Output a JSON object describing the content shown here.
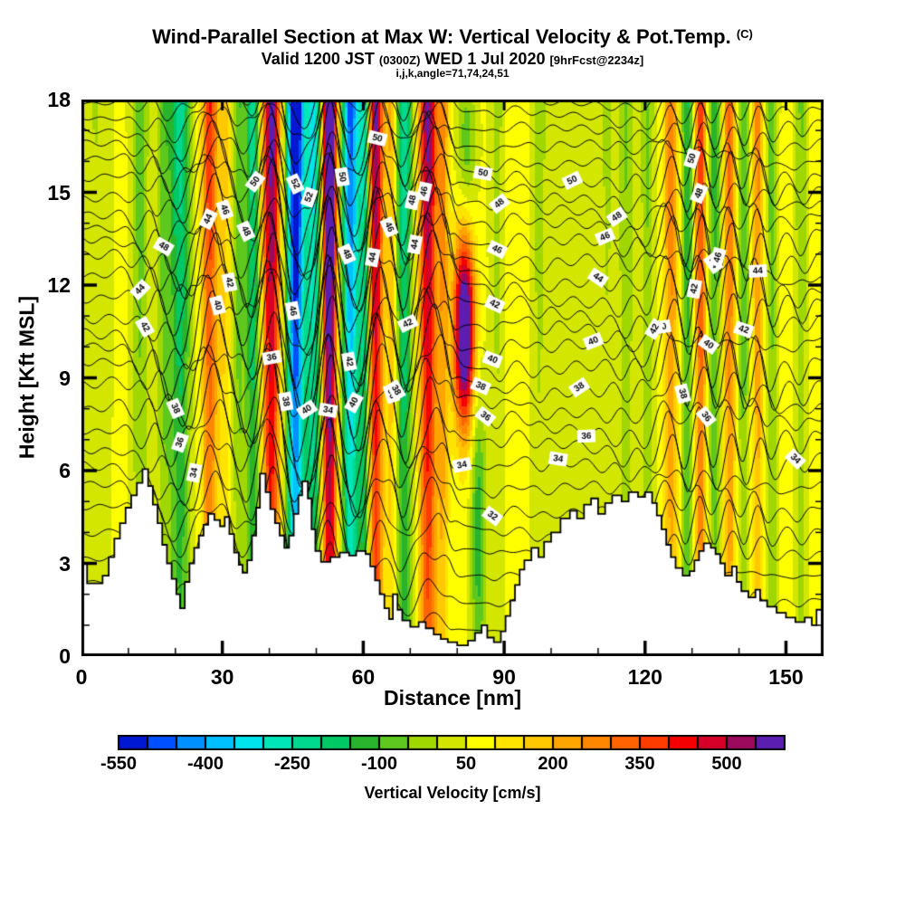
{
  "header": {
    "title_main": "Wind-Parallel Section at Max W: Vertical Velocity & Pot.Temp.",
    "title_suffix": "(C)",
    "subtitle_pre": "Valid 1200 JST ",
    "subtitle_small1": "(0300Z)",
    "subtitle_mid": " WED 1 Jul 2020 ",
    "subtitle_small2": "[9hrFcst@2234z]",
    "subtitle_line3": "i,j,k,angle=71,74,24,51"
  },
  "chart_data": {
    "type": "heatmap",
    "title": "Wind-Parallel Section at Max W: Vertical Velocity & Pot.Temp. (C)",
    "subtitle": "Valid 1200 JST (0300Z) WED 1 Jul 2020 [9hrFcst@2234z]",
    "annotation": "i,j,k,angle=71,74,24,51",
    "xlabel": "Distance [nm]",
    "ylabel": "Height [Kft MSL]",
    "x_range": [
      0,
      158
    ],
    "y_range": [
      0,
      18
    ],
    "x_ticks": [
      0,
      30,
      60,
      90,
      120,
      150
    ],
    "x_minor_step": 10,
    "y_ticks": [
      0,
      3,
      6,
      9,
      12,
      15,
      18
    ],
    "y_minor_step": 1,
    "grid": false,
    "colorbar": {
      "label": "Vertical Velocity [cm/s]",
      "tick_labels": [
        -550,
        -400,
        -250,
        -100,
        50,
        200,
        350,
        500
      ],
      "level_min": -550,
      "level_step": 50,
      "colors": [
        "#0018d2",
        "#0050ff",
        "#0090ff",
        "#00c0ff",
        "#00e4ee",
        "#00e6b8",
        "#00d890",
        "#00c864",
        "#28b42d",
        "#5ec81e",
        "#a0d700",
        "#d2e600",
        "#ffff00",
        "#ffe400",
        "#ffc800",
        "#ffa500",
        "#ff8700",
        "#ff6400",
        "#ff3c00",
        "#f50000",
        "#d40028",
        "#9c0a5e",
        "#5a1eb0"
      ]
    },
    "fill_field": {
      "comment": "vertical-velocity band structure, cm/s: c=center nm, w=half-width nm, a=amplitude; zc/zw optional height localization (Kft)",
      "base": 60,
      "m0": 0.55,
      "m1": 0.5,
      "bands": [
        {
          "c": 3,
          "w": 3,
          "a": -60
        },
        {
          "c": 12.5,
          "w": 1.8,
          "a": -140
        },
        {
          "c": 17.5,
          "w": 1.5,
          "a": -130
        },
        {
          "c": 21,
          "w": 2.2,
          "a": -280
        },
        {
          "c": 27.3,
          "w": 1.6,
          "a": 330
        },
        {
          "c": 30.5,
          "w": 1.5,
          "a": 110
        },
        {
          "c": 33.5,
          "w": 1.4,
          "a": -150
        },
        {
          "c": 36.5,
          "w": 1.5,
          "a": -290
        },
        {
          "c": 40.4,
          "w": 1.8,
          "a": 520
        },
        {
          "c": 45.6,
          "w": 1.9,
          "a": -680
        },
        {
          "c": 49.4,
          "w": 1.7,
          "a": -380
        },
        {
          "c": 52.8,
          "w": 1.5,
          "a": 700
        },
        {
          "c": 57.3,
          "w": 1.8,
          "a": -520
        },
        {
          "c": 60.3,
          "w": 1.3,
          "a": -330
        },
        {
          "c": 62.6,
          "w": 1.6,
          "a": 500
        },
        {
          "c": 66,
          "w": 1,
          "a": 160
        },
        {
          "c": 68.7,
          "w": 1.7,
          "a": -300
        },
        {
          "c": 73.8,
          "w": 1.8,
          "a": 500
        },
        {
          "c": 77,
          "w": 1.2,
          "a": 200
        },
        {
          "c": 81.5,
          "w": 2.2,
          "a": 420,
          "zc": 10.5,
          "zw": 3
        },
        {
          "c": 82,
          "w": 2,
          "a": -90,
          "zc": 16.5,
          "zw": 2.5
        },
        {
          "c": 84.5,
          "w": 1.6,
          "a": -120,
          "zc": 4,
          "zw": 5
        },
        {
          "c": 88.5,
          "w": 1.5,
          "a": -80
        },
        {
          "c": 93,
          "w": 2,
          "a": 30
        },
        {
          "c": 97.5,
          "w": 2,
          "a": -80
        },
        {
          "c": 103,
          "w": 2,
          "a": -50
        },
        {
          "c": 108,
          "w": 2,
          "a": -45
        },
        {
          "c": 112,
          "w": 1.8,
          "a": -70
        },
        {
          "c": 116,
          "w": 1.6,
          "a": -115
        },
        {
          "c": 120.5,
          "w": 1.4,
          "a": -120
        },
        {
          "c": 125.5,
          "w": 1.5,
          "a": 230
        },
        {
          "c": 129,
          "w": 1.3,
          "a": -210
        },
        {
          "c": 131.8,
          "w": 1.2,
          "a": 330
        },
        {
          "c": 134.8,
          "w": 1.3,
          "a": -190
        },
        {
          "c": 138,
          "w": 1.3,
          "a": 260
        },
        {
          "c": 141,
          "w": 1.2,
          "a": -160
        },
        {
          "c": 144,
          "w": 1.2,
          "a": 210
        },
        {
          "c": 147,
          "w": 1.3,
          "a": -140
        },
        {
          "c": 150.5,
          "w": 1.5,
          "a": 30
        },
        {
          "c": 153.2,
          "w": 1.3,
          "a": -115
        },
        {
          "c": 156.5,
          "w": 1.5,
          "a": 30
        }
      ]
    },
    "contours": {
      "variable": "Potential Temperature (C)",
      "level_min": 27,
      "level_max": 56,
      "level_step": 1,
      "theta_fit": {
        "t0": 26,
        "a1": 1.1,
        "a2": 0.028
      },
      "wave": {
        "amp": 1.9,
        "norm": 560,
        "zig_amp": 0.5,
        "zig_wavelength_nm": 6.3,
        "env_norm": 260,
        "slow_amp": 0.18
      },
      "labeled_levels": [
        32,
        34,
        36,
        38,
        40,
        42,
        44,
        46,
        48,
        50,
        52
      ],
      "labels": [
        {
          "v": 32,
          "x": 87.5
        },
        {
          "v": 34,
          "x": 24
        },
        {
          "v": 34,
          "x": 52.5
        },
        {
          "v": 34,
          "x": 81
        },
        {
          "v": 34,
          "x": 101.5
        },
        {
          "v": 34,
          "x": 152
        },
        {
          "v": 36,
          "x": 21
        },
        {
          "v": 36,
          "x": 40.5
        },
        {
          "v": 36,
          "x": 66
        },
        {
          "v": 36,
          "x": 86
        },
        {
          "v": 36,
          "x": 107.5
        },
        {
          "v": 36,
          "x": 133
        },
        {
          "v": 38,
          "x": 20
        },
        {
          "v": 38,
          "x": 43.5
        },
        {
          "v": 38,
          "x": 67
        },
        {
          "v": 38,
          "x": 85
        },
        {
          "v": 38,
          "x": 106
        },
        {
          "v": 38,
          "x": 128
        },
        {
          "v": 40,
          "x": 29
        },
        {
          "v": 40,
          "x": 48
        },
        {
          "v": 40,
          "x": 58
        },
        {
          "v": 40,
          "x": 87.5
        },
        {
          "v": 40,
          "x": 109
        },
        {
          "v": 40,
          "x": 123.5
        },
        {
          "v": 40,
          "x": 133.5
        },
        {
          "v": 42,
          "x": 13.5
        },
        {
          "v": 42,
          "x": 31.5
        },
        {
          "v": 42,
          "x": 57
        },
        {
          "v": 42,
          "x": 69.5
        },
        {
          "v": 42,
          "x": 88
        },
        {
          "v": 42,
          "x": 122
        },
        {
          "v": 42,
          "x": 130.5
        },
        {
          "v": 42,
          "x": 141
        },
        {
          "v": 44,
          "x": 12.5
        },
        {
          "v": 44,
          "x": 27
        },
        {
          "v": 44,
          "x": 62
        },
        {
          "v": 44,
          "x": 71
        },
        {
          "v": 44,
          "x": 110
        },
        {
          "v": 44,
          "x": 134.5
        },
        {
          "v": 44,
          "x": 144
        },
        {
          "v": 46,
          "x": 30.5
        },
        {
          "v": 46,
          "x": 45
        },
        {
          "v": 46,
          "x": 65.5
        },
        {
          "v": 46,
          "x": 73
        },
        {
          "v": 46,
          "x": 88.5
        },
        {
          "v": 46,
          "x": 111.5
        },
        {
          "v": 46,
          "x": 135.5
        },
        {
          "v": 48,
          "x": 17.5
        },
        {
          "v": 48,
          "x": 35
        },
        {
          "v": 48,
          "x": 56.5
        },
        {
          "v": 48,
          "x": 70.5
        },
        {
          "v": 48,
          "x": 89
        },
        {
          "v": 48,
          "x": 114
        },
        {
          "v": 48,
          "x": 131.5
        },
        {
          "v": 50,
          "x": 37
        },
        {
          "v": 50,
          "x": 55.5
        },
        {
          "v": 50,
          "x": 63
        },
        {
          "v": 50,
          "x": 85.5
        },
        {
          "v": 50,
          "x": 104.5
        },
        {
          "v": 50,
          "x": 130
        },
        {
          "v": 52,
          "x": 45.5
        },
        {
          "v": 52,
          "x": 48.5
        }
      ]
    },
    "terrain_profile": [
      [
        0,
        3.0
      ],
      [
        1.2,
        2.35
      ],
      [
        4.5,
        2.6
      ],
      [
        5.8,
        3.2
      ],
      [
        7,
        3.8
      ],
      [
        8.2,
        4.3
      ],
      [
        9.4,
        4.8
      ],
      [
        10.6,
        5.2
      ],
      [
        11.8,
        5.6
      ],
      [
        13,
        6.05
      ],
      [
        14.2,
        5.5
      ],
      [
        15.2,
        4.9
      ],
      [
        16.2,
        4.3
      ],
      [
        17.2,
        3.6
      ],
      [
        18.2,
        3.0
      ],
      [
        19.2,
        2.5
      ],
      [
        20.2,
        2.0
      ],
      [
        21,
        1.55
      ],
      [
        22,
        2.4
      ],
      [
        23,
        3.0
      ],
      [
        24,
        3.5
      ],
      [
        25,
        3.9
      ],
      [
        26,
        4.25
      ],
      [
        27,
        4.6
      ],
      [
        28.3,
        4.4
      ],
      [
        29.5,
        4.2
      ],
      [
        30.5,
        4.5
      ],
      [
        31.5,
        3.95
      ],
      [
        32.5,
        3.35
      ],
      [
        33.5,
        2.95
      ],
      [
        34.3,
        2.7
      ],
      [
        35.3,
        3.1
      ],
      [
        36.3,
        3.9
      ],
      [
        37.2,
        4.8
      ],
      [
        38,
        5.9
      ],
      [
        39.2,
        5.3
      ],
      [
        40.2,
        4.75
      ],
      [
        41.2,
        4.3
      ],
      [
        42.2,
        3.9
      ],
      [
        43.2,
        3.5
      ],
      [
        44.2,
        3.9
      ],
      [
        45.2,
        4.6
      ],
      [
        46.2,
        5.2
      ],
      [
        47,
        5.65
      ],
      [
        48.2,
        5.1
      ],
      [
        49,
        4.1
      ],
      [
        49.8,
        3.4
      ],
      [
        51,
        3.05
      ],
      [
        53,
        3.2
      ],
      [
        55,
        3.35
      ],
      [
        57,
        3.25
      ],
      [
        58.5,
        3.4
      ],
      [
        60.5,
        3.3
      ],
      [
        61.5,
        2.9
      ],
      [
        62.5,
        2.45
      ],
      [
        63.5,
        2.0
      ],
      [
        64.5,
        1.55
      ],
      [
        65.5,
        1.2
      ],
      [
        66.3,
        2.0
      ],
      [
        67.3,
        1.5
      ],
      [
        68.3,
        1.15
      ],
      [
        70,
        0.95
      ],
      [
        71.8,
        1.1
      ],
      [
        73.3,
        0.9
      ],
      [
        75,
        0.7
      ],
      [
        76.5,
        0.55
      ],
      [
        78,
        0.45
      ],
      [
        80,
        0.35
      ],
      [
        82.3,
        0.5
      ],
      [
        83.8,
        0.75
      ],
      [
        85.2,
        1.0
      ],
      [
        86.4,
        0.6
      ],
      [
        87.8,
        0.45
      ],
      [
        89.3,
        0.8
      ],
      [
        90.3,
        1.3
      ],
      [
        91.3,
        1.8
      ],
      [
        92.3,
        2.3
      ],
      [
        93.3,
        2.8
      ],
      [
        94.3,
        3.1
      ],
      [
        95.8,
        3.5
      ],
      [
        97.3,
        3.2
      ],
      [
        98.5,
        3.7
      ],
      [
        100,
        4.0
      ],
      [
        102,
        4.45
      ],
      [
        104,
        4.7
      ],
      [
        105.5,
        4.45
      ],
      [
        107,
        4.9
      ],
      [
        108.5,
        5.1
      ],
      [
        110,
        4.6
      ],
      [
        111.5,
        4.95
      ],
      [
        113,
        5.2
      ],
      [
        115,
        5.0
      ],
      [
        116.5,
        5.3
      ],
      [
        118.5,
        5.15
      ],
      [
        120,
        5.3
      ],
      [
        121.5,
        4.95
      ],
      [
        122.5,
        4.55
      ],
      [
        123.5,
        4.1
      ],
      [
        124.5,
        3.6
      ],
      [
        125.5,
        3.2
      ],
      [
        126.5,
        2.85
      ],
      [
        128,
        2.6
      ],
      [
        129.5,
        2.75
      ],
      [
        130.5,
        3.1
      ],
      [
        131.5,
        3.4
      ],
      [
        132.5,
        3.65
      ],
      [
        134,
        3.5
      ],
      [
        135,
        3.3
      ],
      [
        136,
        3.0
      ],
      [
        137,
        2.6
      ],
      [
        138.5,
        2.9
      ],
      [
        139.5,
        2.4
      ],
      [
        140.5,
        2.1
      ],
      [
        142,
        1.9
      ],
      [
        143.5,
        2.15
      ],
      [
        144.5,
        1.8
      ],
      [
        146,
        1.6
      ],
      [
        148,
        1.4
      ],
      [
        150,
        1.25
      ],
      [
        152,
        1.1
      ],
      [
        154,
        1.25
      ],
      [
        155.5,
        1.0
      ],
      [
        156.5,
        1.5
      ]
    ]
  }
}
